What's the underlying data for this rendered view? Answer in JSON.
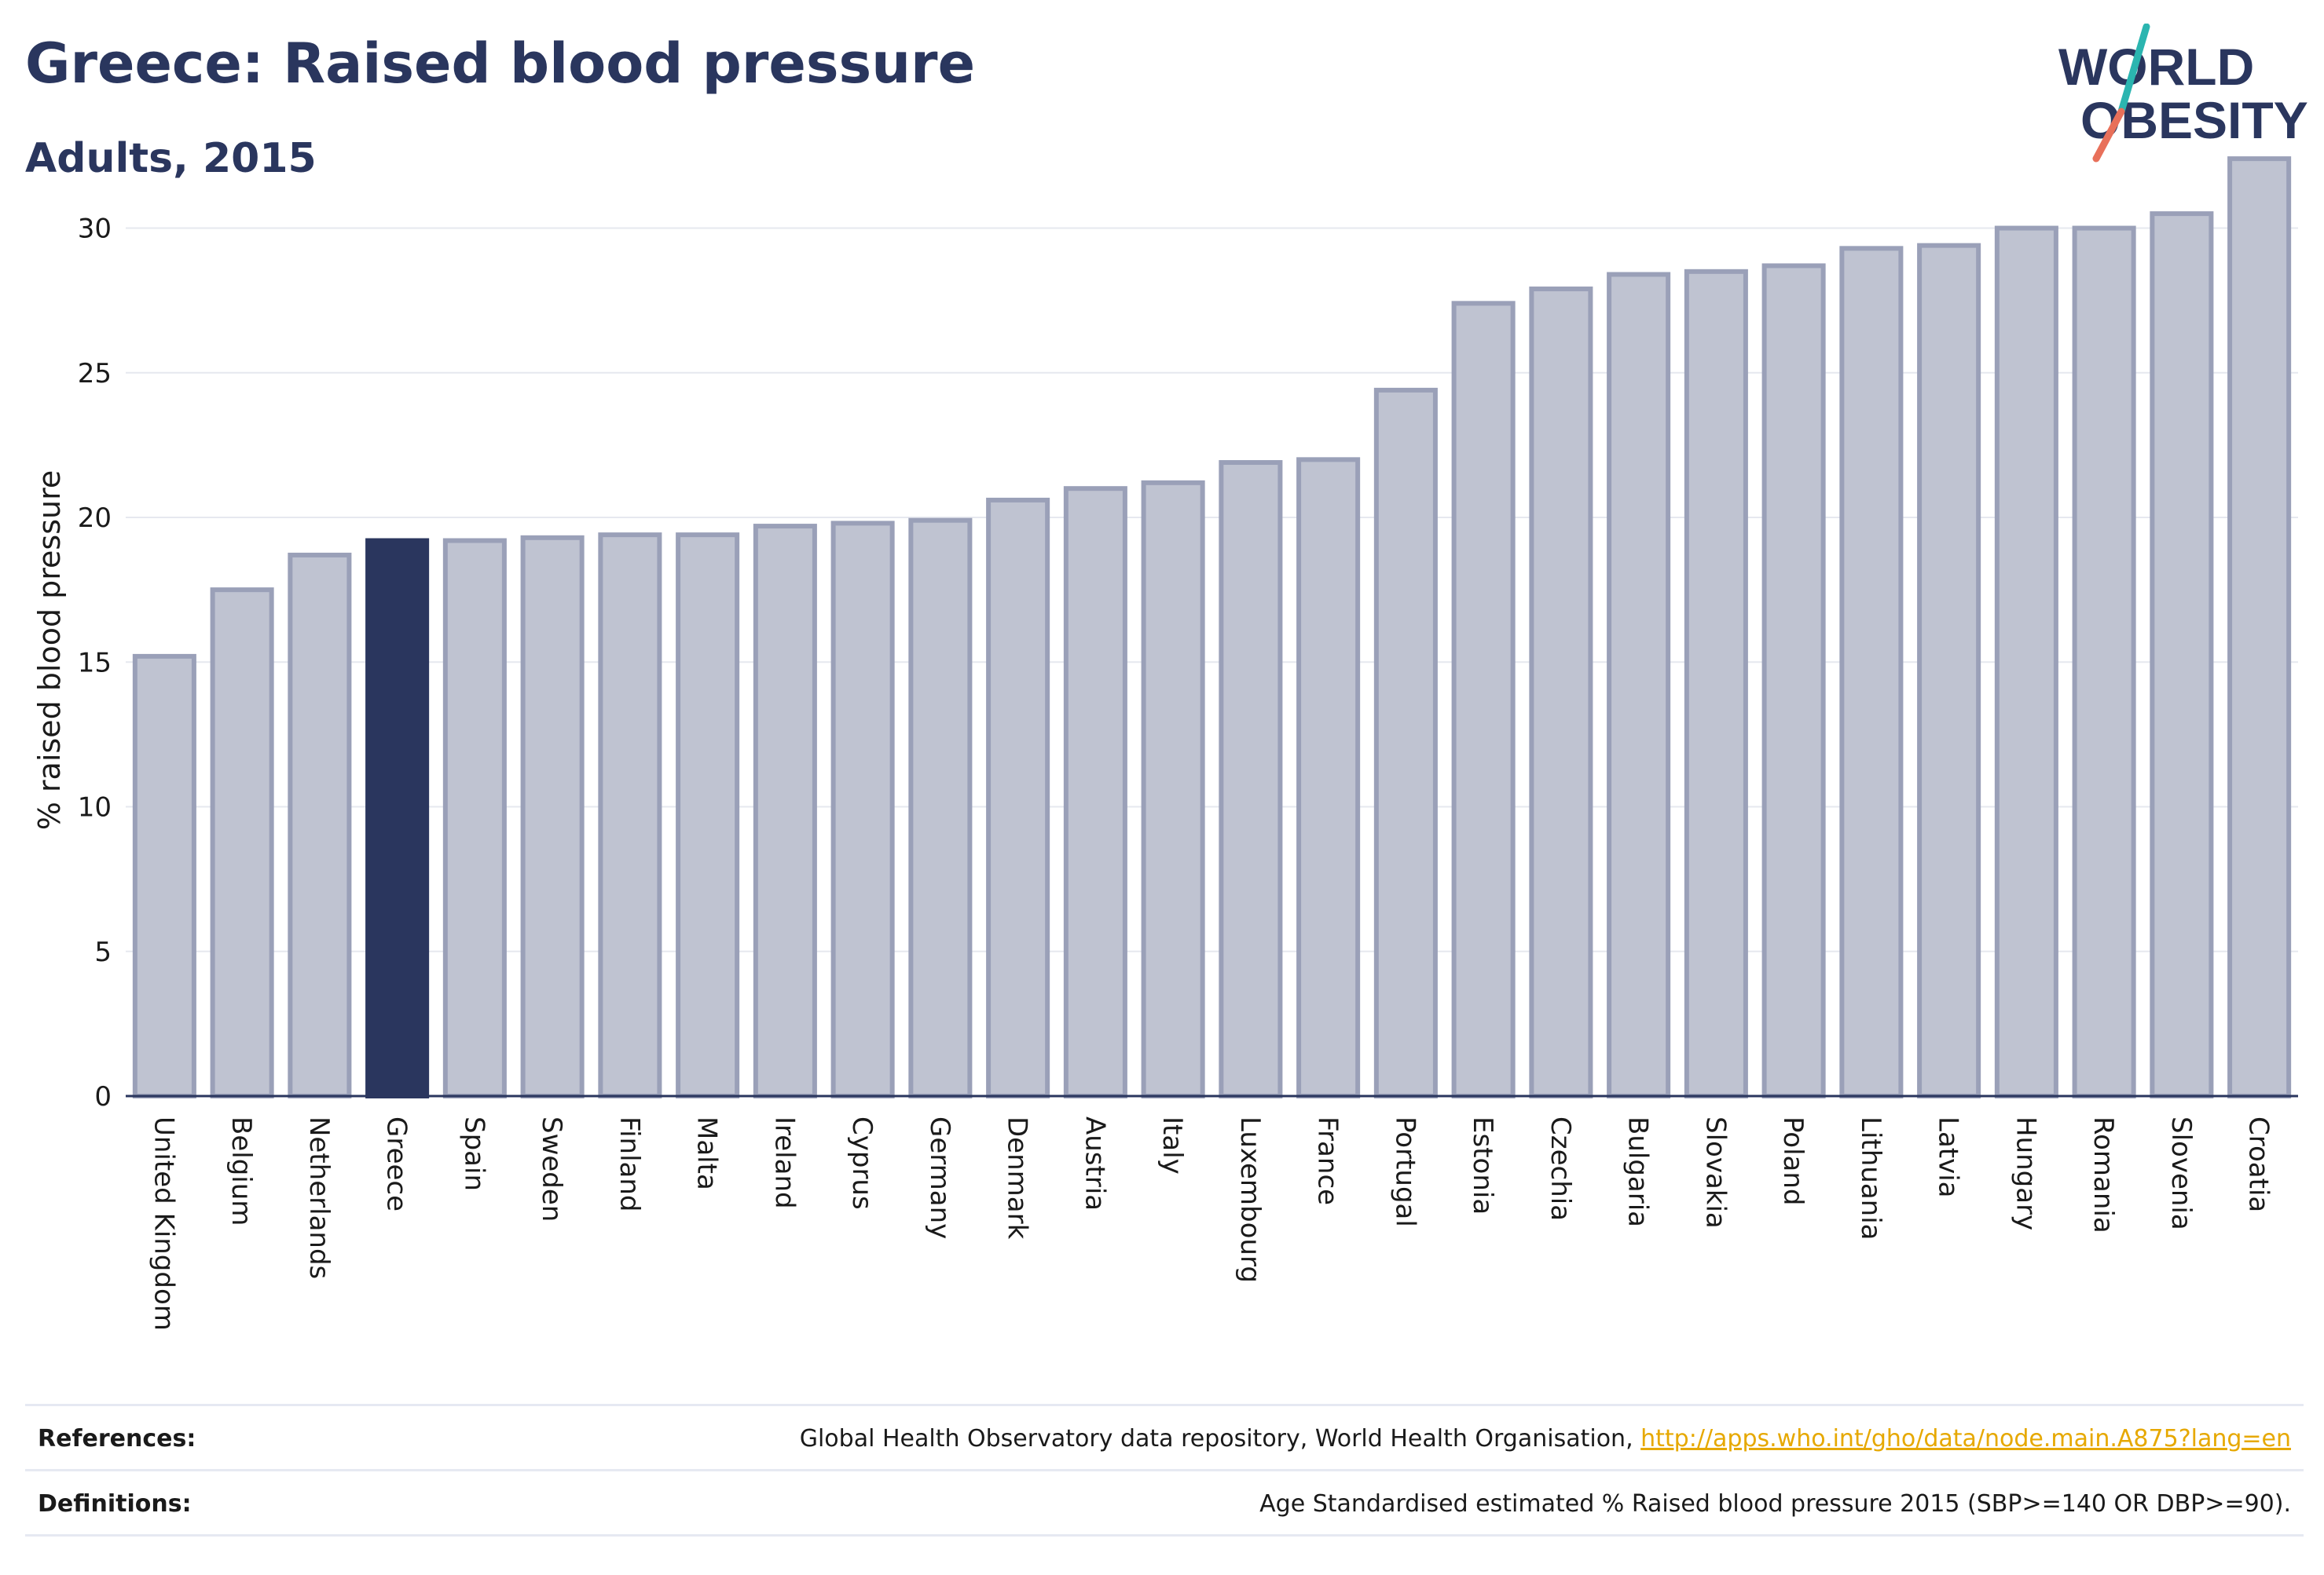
{
  "header": {
    "title": "Greece: Raised blood pressure",
    "subtitle": "Adults, 2015"
  },
  "logo": {
    "text_line1": "WORLD",
    "text_line2": "OBESITY",
    "colors": {
      "text": "#2a365e",
      "slash_top": "#2bb5b0",
      "slash_bottom": "#e8705a"
    }
  },
  "colors": {
    "bar_fill": "#bfc3d1",
    "bar_stroke": "#9aa0b8",
    "highlight_fill": "#2a365e",
    "grid": "#e6e8ef",
    "axis": "#2a365e",
    "link": "#e6a800"
  },
  "chart_data": {
    "type": "bar",
    "ylabel": "% raised blood pressure",
    "ylim": [
      0,
      33
    ],
    "yticks": [
      0,
      5,
      10,
      15,
      20,
      25,
      30
    ],
    "grid": true,
    "highlight": "Greece",
    "categories": [
      "United Kingdom",
      "Belgium",
      "Netherlands",
      "Greece",
      "Spain",
      "Sweden",
      "Finland",
      "Malta",
      "Ireland",
      "Cyprus",
      "Germany",
      "Denmark",
      "Austria",
      "Italy",
      "Luxembourg",
      "France",
      "Portugal",
      "Estonia",
      "Czechia",
      "Bulgaria",
      "Slovakia",
      "Poland",
      "Lithuania",
      "Latvia",
      "Hungary",
      "Romania",
      "Slovenia",
      "Croatia"
    ],
    "values": [
      15.2,
      17.5,
      18.7,
      19.2,
      19.2,
      19.3,
      19.4,
      19.4,
      19.7,
      19.8,
      19.9,
      20.6,
      21.0,
      21.2,
      21.9,
      22.0,
      24.4,
      27.4,
      27.9,
      28.4,
      28.5,
      28.7,
      29.3,
      29.4,
      30.0,
      30.0,
      30.5,
      32.4
    ]
  },
  "footer": {
    "references_label": "References:",
    "references_text": "Global Health Observatory data repository, World Health Organisation, ",
    "references_link": "http://apps.who.int/gho/data/node.main.A875?lang=en",
    "definitions_label": "Definitions:",
    "definitions_text": "Age Standardised estimated % Raised blood pressure 2015 (SBP>=140 OR DBP>=90)."
  }
}
